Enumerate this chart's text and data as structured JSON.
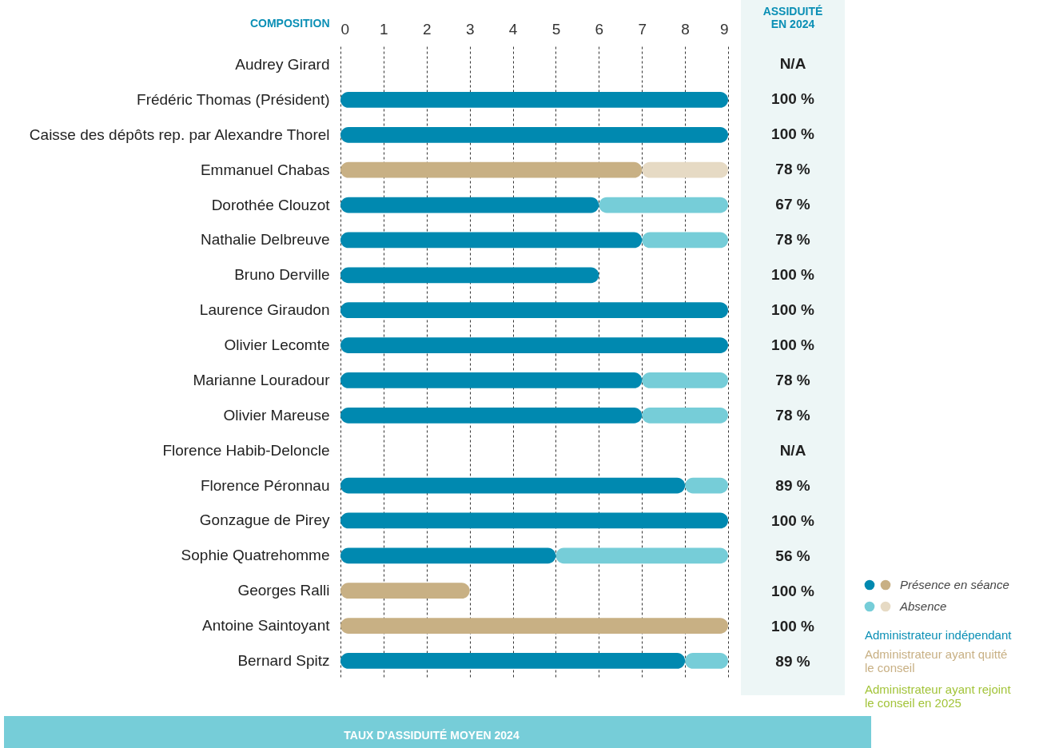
{
  "chart_data": {
    "type": "bar",
    "orientation": "horizontal",
    "stacked": true,
    "ylabel": "COMPOSITION",
    "categories": [
      "Audrey Girard",
      "Frédéric Thomas (Président)",
      "Caisse des dépôts rep. par Alexandre Thorel",
      "Emmanuel Chabas",
      "Dorothée Clouzot",
      "Nathalie Delbreuve",
      "Bruno Derville",
      "Laurence Giraudon",
      "Olivier Lecomte",
      "Marianne Louradour",
      "Olivier Mareuse",
      "Florence Habib-Deloncle",
      "Florence Péronnau",
      "Gonzague de Pirey",
      "Sophie Quatrehomme",
      "Georges Ralli",
      "Antoine Saintoyant",
      "Bernard Spitz"
    ],
    "series": [
      {
        "name": "Présence en séance",
        "color": "#0089b0",
        "values": [
          null,
          9,
          9,
          7,
          6,
          7,
          6,
          9,
          9,
          7,
          7,
          null,
          8,
          9,
          5,
          3,
          9,
          8
        ],
        "colors": [
          null,
          "#0089b0",
          "#0089b0",
          "#c8b084",
          "#0089b0",
          "#0089b0",
          "#0089b0",
          "#0089b0",
          "#0089b0",
          "#0089b0",
          "#0089b0",
          null,
          "#0089b0",
          "#0089b0",
          "#0089b0",
          "#c8b084",
          "#c8b084",
          "#0089b0"
        ]
      },
      {
        "name": "Absence",
        "color": "#76cdd8",
        "values": [
          null,
          null,
          null,
          2,
          3,
          2,
          null,
          null,
          null,
          2,
          2,
          null,
          1,
          null,
          4,
          null,
          null,
          1
        ],
        "colors": [
          null,
          null,
          null,
          "#e6dac4",
          "#76cdd8",
          "#76cdd8",
          null,
          null,
          null,
          "#76cdd8",
          "#76cdd8",
          null,
          "#76cdd8",
          null,
          "#76cdd8",
          null,
          null,
          "#76cdd8"
        ]
      }
    ],
    "xlim": [
      0,
      9
    ],
    "xticks": [
      0,
      1,
      2,
      3,
      4,
      5,
      6,
      7,
      8,
      9
    ],
    "grid": "x",
    "legend": "bottom right",
    "annotations": [
      "ASSIDUITÉ\nEN 2024",
      "TAUX D'ASSIDUITÉ MOYEN 2024",
      "Administrateur indépendant",
      "Administrateur ayant quitté\nle conseil",
      "Administrateur ayant rejoint\nle conseil en 2025",
      "N/A",
      "100 %",
      "100 %",
      "78 %",
      "67 %",
      "78 %",
      "100 %",
      "100 %",
      "100 %",
      "78 %",
      "78 %",
      "N/A",
      "89 %",
      "100 %",
      "56 %",
      "100 %",
      "100 %",
      "89 %"
    ]
  }
}
